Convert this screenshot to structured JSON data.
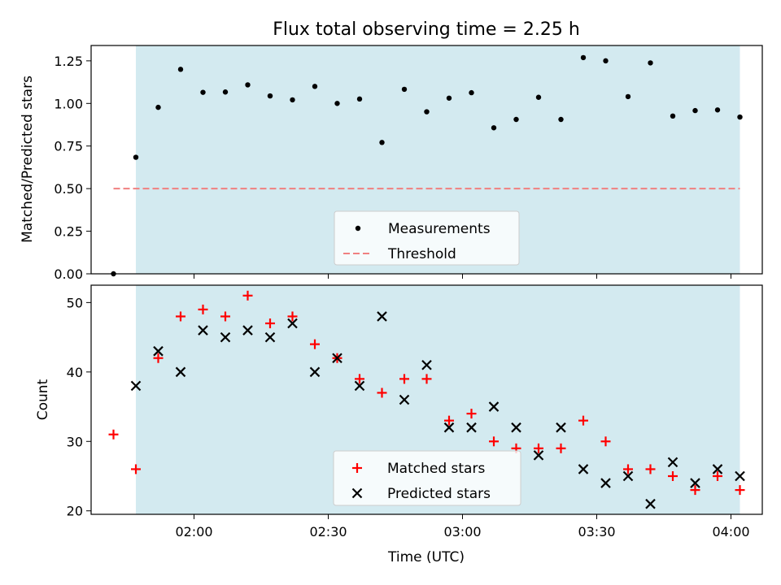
{
  "chart_data": [
    {
      "type": "scatter",
      "title": "Flux total observing time = 2.25 h",
      "ylabel": "Matched/Predicted stars",
      "ylim": [
        0,
        1.34
      ],
      "yticks": [
        0.0,
        0.25,
        0.5,
        0.75,
        1.0,
        1.25
      ],
      "ytick_labels": [
        "0.00",
        "0.25",
        "0.50",
        "0.75",
        "1.00",
        "1.25"
      ],
      "observing_window": {
        "start": "01:47",
        "end": "04:02",
        "color": "#d3eaf0"
      },
      "threshold": {
        "name": "Threshold",
        "value": 0.5,
        "x_start": "01:42",
        "x_end": "04:02",
        "color": "#f08080"
      },
      "series": [
        {
          "name": "Measurements",
          "color": "#000000",
          "marker": "dot",
          "x": [
            "01:42",
            "01:47",
            "01:52",
            "01:57",
            "02:02",
            "02:07",
            "02:12",
            "02:17",
            "02:22",
            "02:27",
            "02:32",
            "02:37",
            "02:42",
            "02:47",
            "02:52",
            "02:57",
            "03:02",
            "03:07",
            "03:12",
            "03:17",
            "03:22",
            "03:27",
            "03:32",
            "03:37",
            "03:42",
            "03:47",
            "03:52",
            "03:57",
            "04:02"
          ],
          "y": [
            0.0,
            0.684,
            0.977,
            1.2,
            1.065,
            1.067,
            1.109,
            1.044,
            1.021,
            1.1,
            1.0,
            1.026,
            0.771,
            1.083,
            0.951,
            1.031,
            1.063,
            0.857,
            0.906,
            1.036,
            0.906,
            1.269,
            1.25,
            1.04,
            1.238,
            0.926,
            0.958,
            0.962,
            0.92
          ]
        }
      ],
      "legend": {
        "placement": "lower-center",
        "entries": [
          "Measurements",
          "Threshold"
        ]
      }
    },
    {
      "type": "scatter",
      "xlabel": "Time (UTC)",
      "ylabel": "Count",
      "ylim": [
        19.5,
        52.5
      ],
      "yticks": [
        20,
        30,
        40,
        50
      ],
      "ytick_labels": [
        "20",
        "30",
        "40",
        "50"
      ],
      "xlim": [
        "01:37",
        "04:07"
      ],
      "xticks": [
        "02:00",
        "02:30",
        "03:00",
        "03:30",
        "04:00"
      ],
      "xtick_labels": [
        "02:00",
        "02:30",
        "03:00",
        "03:30",
        "04:00"
      ],
      "observing_window": {
        "start": "01:47",
        "end": "04:02",
        "color": "#d3eaf0"
      },
      "series": [
        {
          "name": "Matched stars",
          "color": "#ff0000",
          "marker": "plus",
          "x": [
            "01:42",
            "01:47",
            "01:52",
            "01:57",
            "02:02",
            "02:07",
            "02:12",
            "02:17",
            "02:22",
            "02:27",
            "02:32",
            "02:37",
            "02:42",
            "02:47",
            "02:52",
            "02:57",
            "03:02",
            "03:07",
            "03:12",
            "03:17",
            "03:22",
            "03:27",
            "03:32",
            "03:37",
            "03:42",
            "03:47",
            "03:52",
            "03:57",
            "04:02"
          ],
          "y": [
            31,
            26,
            42,
            48,
            49,
            48,
            51,
            47,
            48,
            44,
            42,
            39,
            37,
            39,
            39,
            33,
            34,
            30,
            29,
            29,
            29,
            33,
            30,
            26,
            26,
            25,
            23,
            25,
            23
          ]
        },
        {
          "name": "Predicted stars",
          "color": "#000000",
          "marker": "x",
          "x": [
            "01:47",
            "01:52",
            "01:57",
            "02:02",
            "02:07",
            "02:12",
            "02:17",
            "02:22",
            "02:27",
            "02:32",
            "02:37",
            "02:42",
            "02:47",
            "02:52",
            "02:57",
            "03:02",
            "03:07",
            "03:12",
            "03:17",
            "03:22",
            "03:27",
            "03:32",
            "03:37",
            "03:42",
            "03:47",
            "03:52",
            "03:57",
            "04:02"
          ],
          "y": [
            38,
            43,
            40,
            46,
            45,
            46,
            45,
            47,
            40,
            42,
            38,
            48,
            36,
            41,
            32,
            32,
            35,
            32,
            28,
            32,
            26,
            24,
            25,
            21,
            27,
            24,
            26,
            25
          ]
        }
      ],
      "legend": {
        "placement": "lower-center",
        "entries": [
          "Matched stars",
          "Predicted stars"
        ]
      }
    }
  ]
}
